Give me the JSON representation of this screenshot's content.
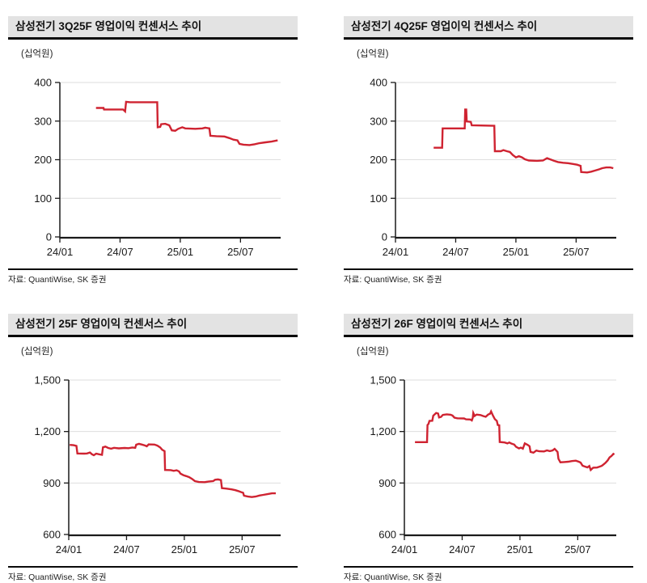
{
  "colors": {
    "line": "#cf2331",
    "grid": "#dedede",
    "axis": "#1a1a1a",
    "title_bg": "#e3e3e3",
    "title_text": "#111111"
  },
  "chart_data": [
    {
      "type": "line",
      "title": "삼성전기 3Q25F 영업이익 컨센서스 추이",
      "unit_label": "(십억원)",
      "source": "자료: QuantiWise, SK 증권",
      "line_color": "#cf2331",
      "grid": "horizontal",
      "x_axis": {
        "range_months": [
          0,
          22
        ],
        "tick_positions": [
          0,
          6,
          12,
          18
        ],
        "tick_labels": [
          "24/01",
          "24/07",
          "25/01",
          "25/07"
        ]
      },
      "y_axis": {
        "min": 0,
        "max": 400,
        "tick_values": [
          400,
          300,
          200,
          100,
          0
        ],
        "tick_labels": [
          "400",
          "300",
          "200",
          "100",
          "0"
        ]
      },
      "points": [
        [
          3.6,
          334
        ],
        [
          4.35,
          334
        ],
        [
          4.4,
          330
        ],
        [
          6.3,
          330
        ],
        [
          6.5,
          325
        ],
        [
          6.6,
          350
        ],
        [
          7.0,
          349
        ],
        [
          9.7,
          349
        ],
        [
          9.75,
          284
        ],
        [
          10.0,
          285
        ],
        [
          10.1,
          292
        ],
        [
          10.5,
          293
        ],
        [
          10.9,
          289
        ],
        [
          11.15,
          276
        ],
        [
          11.5,
          275
        ],
        [
          11.8,
          280
        ],
        [
          12.2,
          284
        ],
        [
          12.5,
          281
        ],
        [
          13.5,
          280
        ],
        [
          14.2,
          281
        ],
        [
          14.5,
          283
        ],
        [
          14.9,
          281
        ],
        [
          15.0,
          262
        ],
        [
          15.6,
          261
        ],
        [
          16.4,
          260
        ],
        [
          16.9,
          256
        ],
        [
          17.3,
          252
        ],
        [
          17.7,
          250
        ],
        [
          17.9,
          241
        ],
        [
          18.3,
          239
        ],
        [
          18.9,
          238
        ],
        [
          19.4,
          240
        ],
        [
          19.9,
          243
        ],
        [
          20.5,
          245
        ],
        [
          21.1,
          247
        ],
        [
          21.7,
          250
        ]
      ]
    },
    {
      "type": "line",
      "title": "삼성전기 4Q25F 영업이익 컨센서스 추이",
      "unit_label": "(십억원)",
      "source": "자료: QuantiWise, SK 증권",
      "line_color": "#cf2331",
      "grid": "horizontal",
      "x_axis": {
        "range_months": [
          0,
          22
        ],
        "tick_positions": [
          0,
          6,
          12,
          18
        ],
        "tick_labels": [
          "24/01",
          "24/07",
          "25/01",
          "25/07"
        ]
      },
      "y_axis": {
        "min": 0,
        "max": 400,
        "tick_values": [
          400,
          300,
          200,
          100,
          0
        ],
        "tick_labels": [
          "400",
          "300",
          "200",
          "100",
          "0"
        ]
      },
      "points": [
        [
          3.8,
          231
        ],
        [
          4.65,
          231
        ],
        [
          4.7,
          281
        ],
        [
          6.9,
          281
        ],
        [
          6.95,
          330
        ],
        [
          7.05,
          330
        ],
        [
          7.1,
          299
        ],
        [
          7.5,
          298
        ],
        [
          7.6,
          289
        ],
        [
          9.85,
          288
        ],
        [
          9.9,
          222
        ],
        [
          10.5,
          222
        ],
        [
          10.75,
          225
        ],
        [
          11.1,
          222
        ],
        [
          11.4,
          220
        ],
        [
          11.7,
          212
        ],
        [
          12.0,
          206
        ],
        [
          12.3,
          209
        ],
        [
          12.6,
          206
        ],
        [
          12.9,
          201
        ],
        [
          13.3,
          198
        ],
        [
          14.1,
          197
        ],
        [
          14.7,
          198
        ],
        [
          15.1,
          204
        ],
        [
          15.4,
          201
        ],
        [
          15.8,
          197
        ],
        [
          16.2,
          194
        ],
        [
          16.7,
          192
        ],
        [
          17.2,
          191
        ],
        [
          17.7,
          189
        ],
        [
          18.1,
          187
        ],
        [
          18.45,
          184
        ],
        [
          18.5,
          168
        ],
        [
          19.1,
          167
        ],
        [
          19.5,
          169
        ],
        [
          19.9,
          172
        ],
        [
          20.3,
          175
        ],
        [
          20.6,
          178
        ],
        [
          21.0,
          180
        ],
        [
          21.4,
          180
        ],
        [
          21.7,
          178
        ]
      ]
    },
    {
      "type": "line",
      "title": "삼성전기 25F 영업이익 컨센서스 추이",
      "unit_label": "(십억원)",
      "source": "자료: QuantiWise, SK 증권",
      "line_color": "#cf2331",
      "grid": "horizontal",
      "x_axis": {
        "range_months": [
          0,
          22
        ],
        "tick_positions": [
          0,
          6,
          12,
          18
        ],
        "tick_labels": [
          "24/01",
          "24/07",
          "25/01",
          "25/07"
        ]
      },
      "y_axis": {
        "min": 600,
        "max": 1500,
        "tick_values": [
          1500,
          1200,
          900,
          600
        ],
        "tick_labels": [
          "1,500",
          "1,200",
          "900",
          "600"
        ]
      },
      "points": [
        [
          0.1,
          1122
        ],
        [
          0.5,
          1120
        ],
        [
          0.8,
          1116
        ],
        [
          0.9,
          1072
        ],
        [
          1.6,
          1071
        ],
        [
          1.9,
          1072
        ],
        [
          2.2,
          1078
        ],
        [
          2.4,
          1068
        ],
        [
          2.6,
          1062
        ],
        [
          2.85,
          1071
        ],
        [
          3.1,
          1068
        ],
        [
          3.45,
          1064
        ],
        [
          3.55,
          1108
        ],
        [
          3.8,
          1112
        ],
        [
          4.1,
          1104
        ],
        [
          4.4,
          1100
        ],
        [
          4.7,
          1105
        ],
        [
          5.2,
          1102
        ],
        [
          5.8,
          1104
        ],
        [
          6.2,
          1103
        ],
        [
          6.6,
          1107
        ],
        [
          6.9,
          1105
        ],
        [
          7.0,
          1123
        ],
        [
          7.3,
          1128
        ],
        [
          7.6,
          1124
        ],
        [
          7.9,
          1119
        ],
        [
          8.1,
          1114
        ],
        [
          8.3,
          1125
        ],
        [
          8.9,
          1124
        ],
        [
          9.2,
          1118
        ],
        [
          9.5,
          1107
        ],
        [
          9.7,
          1094
        ],
        [
          9.95,
          1086
        ],
        [
          10.0,
          976
        ],
        [
          10.6,
          975
        ],
        [
          10.9,
          971
        ],
        [
          11.2,
          974
        ],
        [
          11.45,
          967
        ],
        [
          11.6,
          955
        ],
        [
          11.9,
          946
        ],
        [
          12.2,
          940
        ],
        [
          12.5,
          934
        ],
        [
          12.8,
          924
        ],
        [
          13.1,
          911
        ],
        [
          13.5,
          906
        ],
        [
          14.1,
          905
        ],
        [
          14.5,
          908
        ],
        [
          15.0,
          911
        ],
        [
          15.2,
          919
        ],
        [
          15.5,
          921
        ],
        [
          15.8,
          917
        ],
        [
          15.9,
          870
        ],
        [
          16.4,
          867
        ],
        [
          16.9,
          863
        ],
        [
          17.3,
          858
        ],
        [
          17.6,
          853
        ],
        [
          17.9,
          847
        ],
        [
          18.1,
          843
        ],
        [
          18.2,
          826
        ],
        [
          18.6,
          821
        ],
        [
          19.0,
          818
        ],
        [
          19.4,
          821
        ],
        [
          19.8,
          827
        ],
        [
          20.2,
          831
        ],
        [
          20.7,
          836
        ],
        [
          21.1,
          840
        ],
        [
          21.5,
          840
        ]
      ]
    },
    {
      "type": "line",
      "title": "삼성전기 26F 영업이익 컨센서스 추이",
      "unit_label": "(십억원)",
      "source": "자료: QuantiWise, SK 증권",
      "line_color": "#cf2331",
      "grid": "horizontal",
      "x_axis": {
        "range_months": [
          0,
          22
        ],
        "tick_positions": [
          0,
          6,
          12,
          18
        ],
        "tick_labels": [
          "24/01",
          "24/07",
          "25/01",
          "25/07"
        ]
      },
      "y_axis": {
        "min": 600,
        "max": 1500,
        "tick_values": [
          1500,
          1200,
          900,
          600
        ],
        "tick_labels": [
          "1,500",
          "1,200",
          "900",
          "600"
        ]
      },
      "points": [
        [
          1.1,
          1138
        ],
        [
          2.35,
          1138
        ],
        [
          2.4,
          1238
        ],
        [
          2.5,
          1244
        ],
        [
          2.6,
          1262
        ],
        [
          2.9,
          1263
        ],
        [
          3.0,
          1292
        ],
        [
          3.3,
          1308
        ],
        [
          3.5,
          1305
        ],
        [
          3.6,
          1282
        ],
        [
          3.8,
          1285
        ],
        [
          4.0,
          1297
        ],
        [
          4.4,
          1300
        ],
        [
          4.8,
          1298
        ],
        [
          5.0,
          1293
        ],
        [
          5.2,
          1281
        ],
        [
          5.5,
          1277
        ],
        [
          6.2,
          1276
        ],
        [
          6.4,
          1271
        ],
        [
          6.85,
          1270
        ],
        [
          7.0,
          1265
        ],
        [
          7.1,
          1281
        ],
        [
          7.15,
          1308
        ],
        [
          7.3,
          1291
        ],
        [
          7.5,
          1299
        ],
        [
          7.9,
          1296
        ],
        [
          8.2,
          1290
        ],
        [
          8.45,
          1286
        ],
        [
          8.7,
          1299
        ],
        [
          8.9,
          1304
        ],
        [
          9.0,
          1317
        ],
        [
          9.2,
          1292
        ],
        [
          9.4,
          1272
        ],
        [
          9.6,
          1262
        ],
        [
          9.7,
          1238
        ],
        [
          9.85,
          1236
        ],
        [
          9.9,
          1139
        ],
        [
          10.4,
          1136
        ],
        [
          10.7,
          1131
        ],
        [
          10.9,
          1136
        ],
        [
          11.1,
          1130
        ],
        [
          11.4,
          1124
        ],
        [
          11.6,
          1111
        ],
        [
          11.9,
          1102
        ],
        [
          12.1,
          1106
        ],
        [
          12.3,
          1100
        ],
        [
          12.5,
          1131
        ],
        [
          12.8,
          1122
        ],
        [
          13.0,
          1114
        ],
        [
          13.1,
          1081
        ],
        [
          13.4,
          1077
        ],
        [
          13.7,
          1089
        ],
        [
          14.0,
          1085
        ],
        [
          14.5,
          1084
        ],
        [
          14.8,
          1090
        ],
        [
          15.1,
          1086
        ],
        [
          15.4,
          1090
        ],
        [
          15.6,
          1099
        ],
        [
          15.9,
          1081
        ],
        [
          16.0,
          1041
        ],
        [
          16.2,
          1021
        ],
        [
          16.6,
          1022
        ],
        [
          17.0,
          1024
        ],
        [
          17.4,
          1028
        ],
        [
          17.8,
          1030
        ],
        [
          18.1,
          1024
        ],
        [
          18.3,
          1019
        ],
        [
          18.5,
          1001
        ],
        [
          18.8,
          995
        ],
        [
          19.0,
          991
        ],
        [
          19.2,
          999
        ],
        [
          19.35,
          976
        ],
        [
          19.6,
          989
        ],
        [
          20.0,
          990
        ],
        [
          20.2,
          994
        ],
        [
          20.5,
          1000
        ],
        [
          20.7,
          1009
        ],
        [
          20.9,
          1019
        ],
        [
          21.1,
          1031
        ],
        [
          21.3,
          1049
        ],
        [
          21.5,
          1057
        ],
        [
          21.7,
          1070
        ],
        [
          21.8,
          1066
        ]
      ]
    }
  ]
}
